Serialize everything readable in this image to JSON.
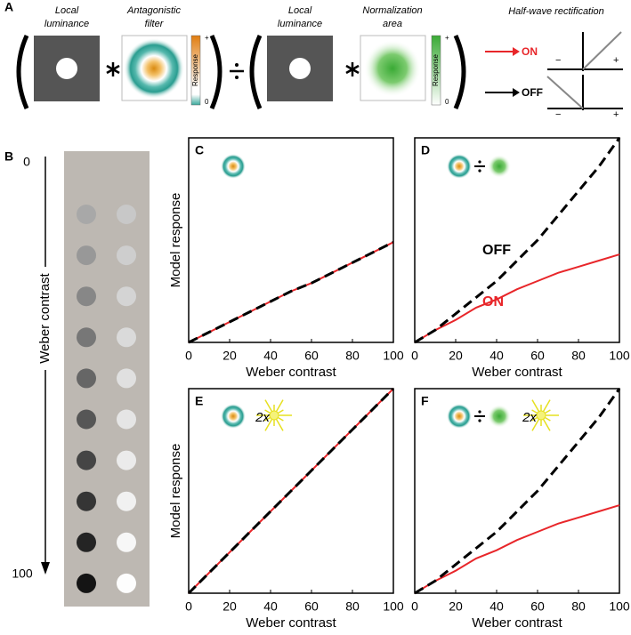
{
  "panel_a": {
    "label": "A",
    "luminance_1": [
      "Local",
      "luminance"
    ],
    "filter": [
      "Antagonistic",
      "filter"
    ],
    "luminance_2": [
      "Local",
      "luminance"
    ],
    "norm": [
      "Normalization",
      "area"
    ],
    "bar_label": "Response",
    "bar_top": "+",
    "bar_bottom": "0",
    "rect_title": "Half-wave rectification",
    "on": "ON",
    "off": "OFF",
    "minus": "−",
    "plus": "+"
  },
  "panel_b": {
    "label": "B",
    "top": "0",
    "bottom": "100",
    "axis_label": "Weber contrast"
  },
  "chart_data": [
    {
      "type": "line",
      "label": "C",
      "xlabel": "Weber contrast",
      "ylabel": "Model response",
      "x": [
        0,
        10,
        20,
        30,
        40,
        50,
        60,
        70,
        80,
        90,
        100
      ],
      "xlim": [
        0,
        100
      ],
      "ylim": [
        0,
        1
      ],
      "xticks": [
        0,
        20,
        40,
        60,
        80,
        100
      ],
      "series": [
        {
          "color": "#e8262a",
          "dashed": false,
          "values": [
            0,
            0.05,
            0.1,
            0.15,
            0.2,
            0.25,
            0.29,
            0.34,
            0.39,
            0.44,
            0.49
          ]
        },
        {
          "color": "#000000",
          "dashed": true,
          "values": [
            0,
            0.05,
            0.1,
            0.15,
            0.2,
            0.25,
            0.29,
            0.34,
            0.39,
            0.44,
            0.49
          ]
        }
      ],
      "annotations": []
    },
    {
      "type": "line",
      "label": "D",
      "xlabel": "Weber contrast",
      "x": [
        0,
        10,
        20,
        30,
        40,
        50,
        60,
        70,
        80,
        90,
        100
      ],
      "xlim": [
        0,
        100
      ],
      "ylim": [
        0,
        1
      ],
      "xticks": [
        0,
        20,
        40,
        60,
        80,
        100
      ],
      "series": [
        {
          "color": "#e8262a",
          "dashed": false,
          "values": [
            0,
            0.06,
            0.11,
            0.17,
            0.21,
            0.26,
            0.3,
            0.34,
            0.37,
            0.4,
            0.43
          ]
        },
        {
          "color": "#000000",
          "dashed": true,
          "values": [
            0,
            0.06,
            0.14,
            0.22,
            0.3,
            0.4,
            0.5,
            0.62,
            0.74,
            0.86,
            1.0
          ]
        }
      ],
      "annotations": [
        "OFF",
        "ON"
      ]
    },
    {
      "type": "line",
      "label": "E",
      "xlabel": "Weber contrast",
      "ylabel": "Model response",
      "x": [
        0,
        10,
        20,
        30,
        40,
        50,
        60,
        70,
        80,
        90,
        100
      ],
      "xlim": [
        0,
        100
      ],
      "ylim": [
        0,
        1
      ],
      "xticks": [
        0,
        20,
        40,
        60,
        80,
        100
      ],
      "series": [
        {
          "color": "#e8262a",
          "dashed": false,
          "values": [
            0,
            0.1,
            0.2,
            0.3,
            0.4,
            0.5,
            0.6,
            0.7,
            0.8,
            0.9,
            1.0
          ]
        },
        {
          "color": "#000000",
          "dashed": true,
          "values": [
            0,
            0.1,
            0.2,
            0.3,
            0.4,
            0.5,
            0.6,
            0.7,
            0.8,
            0.9,
            1.0
          ]
        }
      ],
      "annotations": [
        "2x"
      ]
    },
    {
      "type": "line",
      "label": "F",
      "xlabel": "Weber contrast",
      "x": [
        0,
        10,
        20,
        30,
        40,
        50,
        60,
        70,
        80,
        90,
        100
      ],
      "xlim": [
        0,
        100
      ],
      "ylim": [
        0,
        1
      ],
      "xticks": [
        0,
        20,
        40,
        60,
        80,
        100
      ],
      "series": [
        {
          "color": "#e8262a",
          "dashed": false,
          "values": [
            0,
            0.06,
            0.11,
            0.17,
            0.21,
            0.26,
            0.3,
            0.34,
            0.37,
            0.4,
            0.43
          ]
        },
        {
          "color": "#000000",
          "dashed": true,
          "values": [
            0,
            0.06,
            0.14,
            0.22,
            0.3,
            0.4,
            0.5,
            0.62,
            0.74,
            0.86,
            1.0
          ]
        }
      ],
      "annotations": [
        "2x"
      ]
    }
  ]
}
